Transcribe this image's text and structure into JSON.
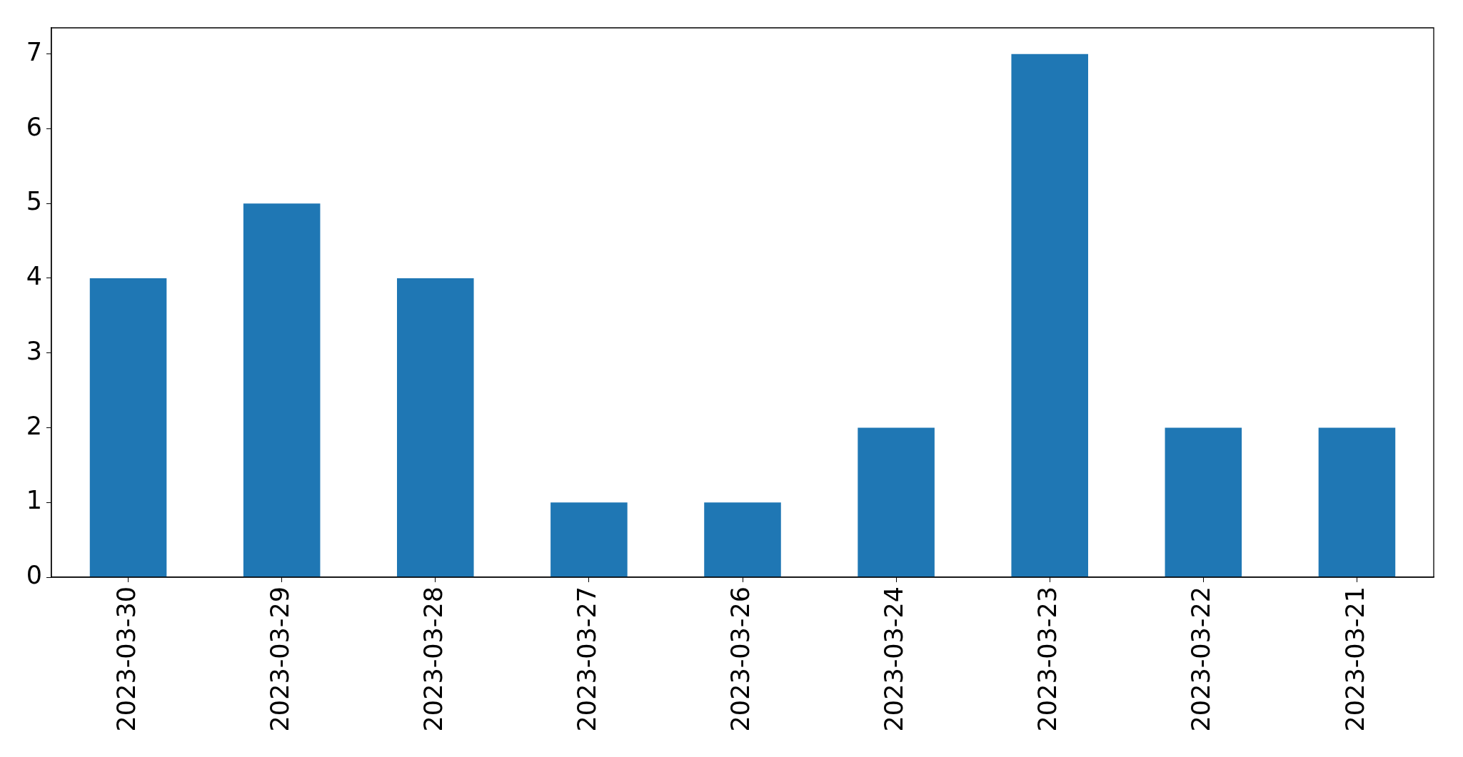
{
  "chart_data": {
    "type": "bar",
    "categories": [
      "2023-03-30",
      "2023-03-29",
      "2023-03-28",
      "2023-03-27",
      "2023-03-26",
      "2023-03-24",
      "2023-03-23",
      "2023-03-22",
      "2023-03-21"
    ],
    "values": [
      4,
      5,
      4,
      1,
      1,
      2,
      7,
      2,
      2
    ],
    "color": "#1f77b4",
    "ylim": [
      0,
      7.35
    ],
    "yticks": [
      0,
      1,
      2,
      3,
      4,
      5,
      6,
      7
    ]
  }
}
